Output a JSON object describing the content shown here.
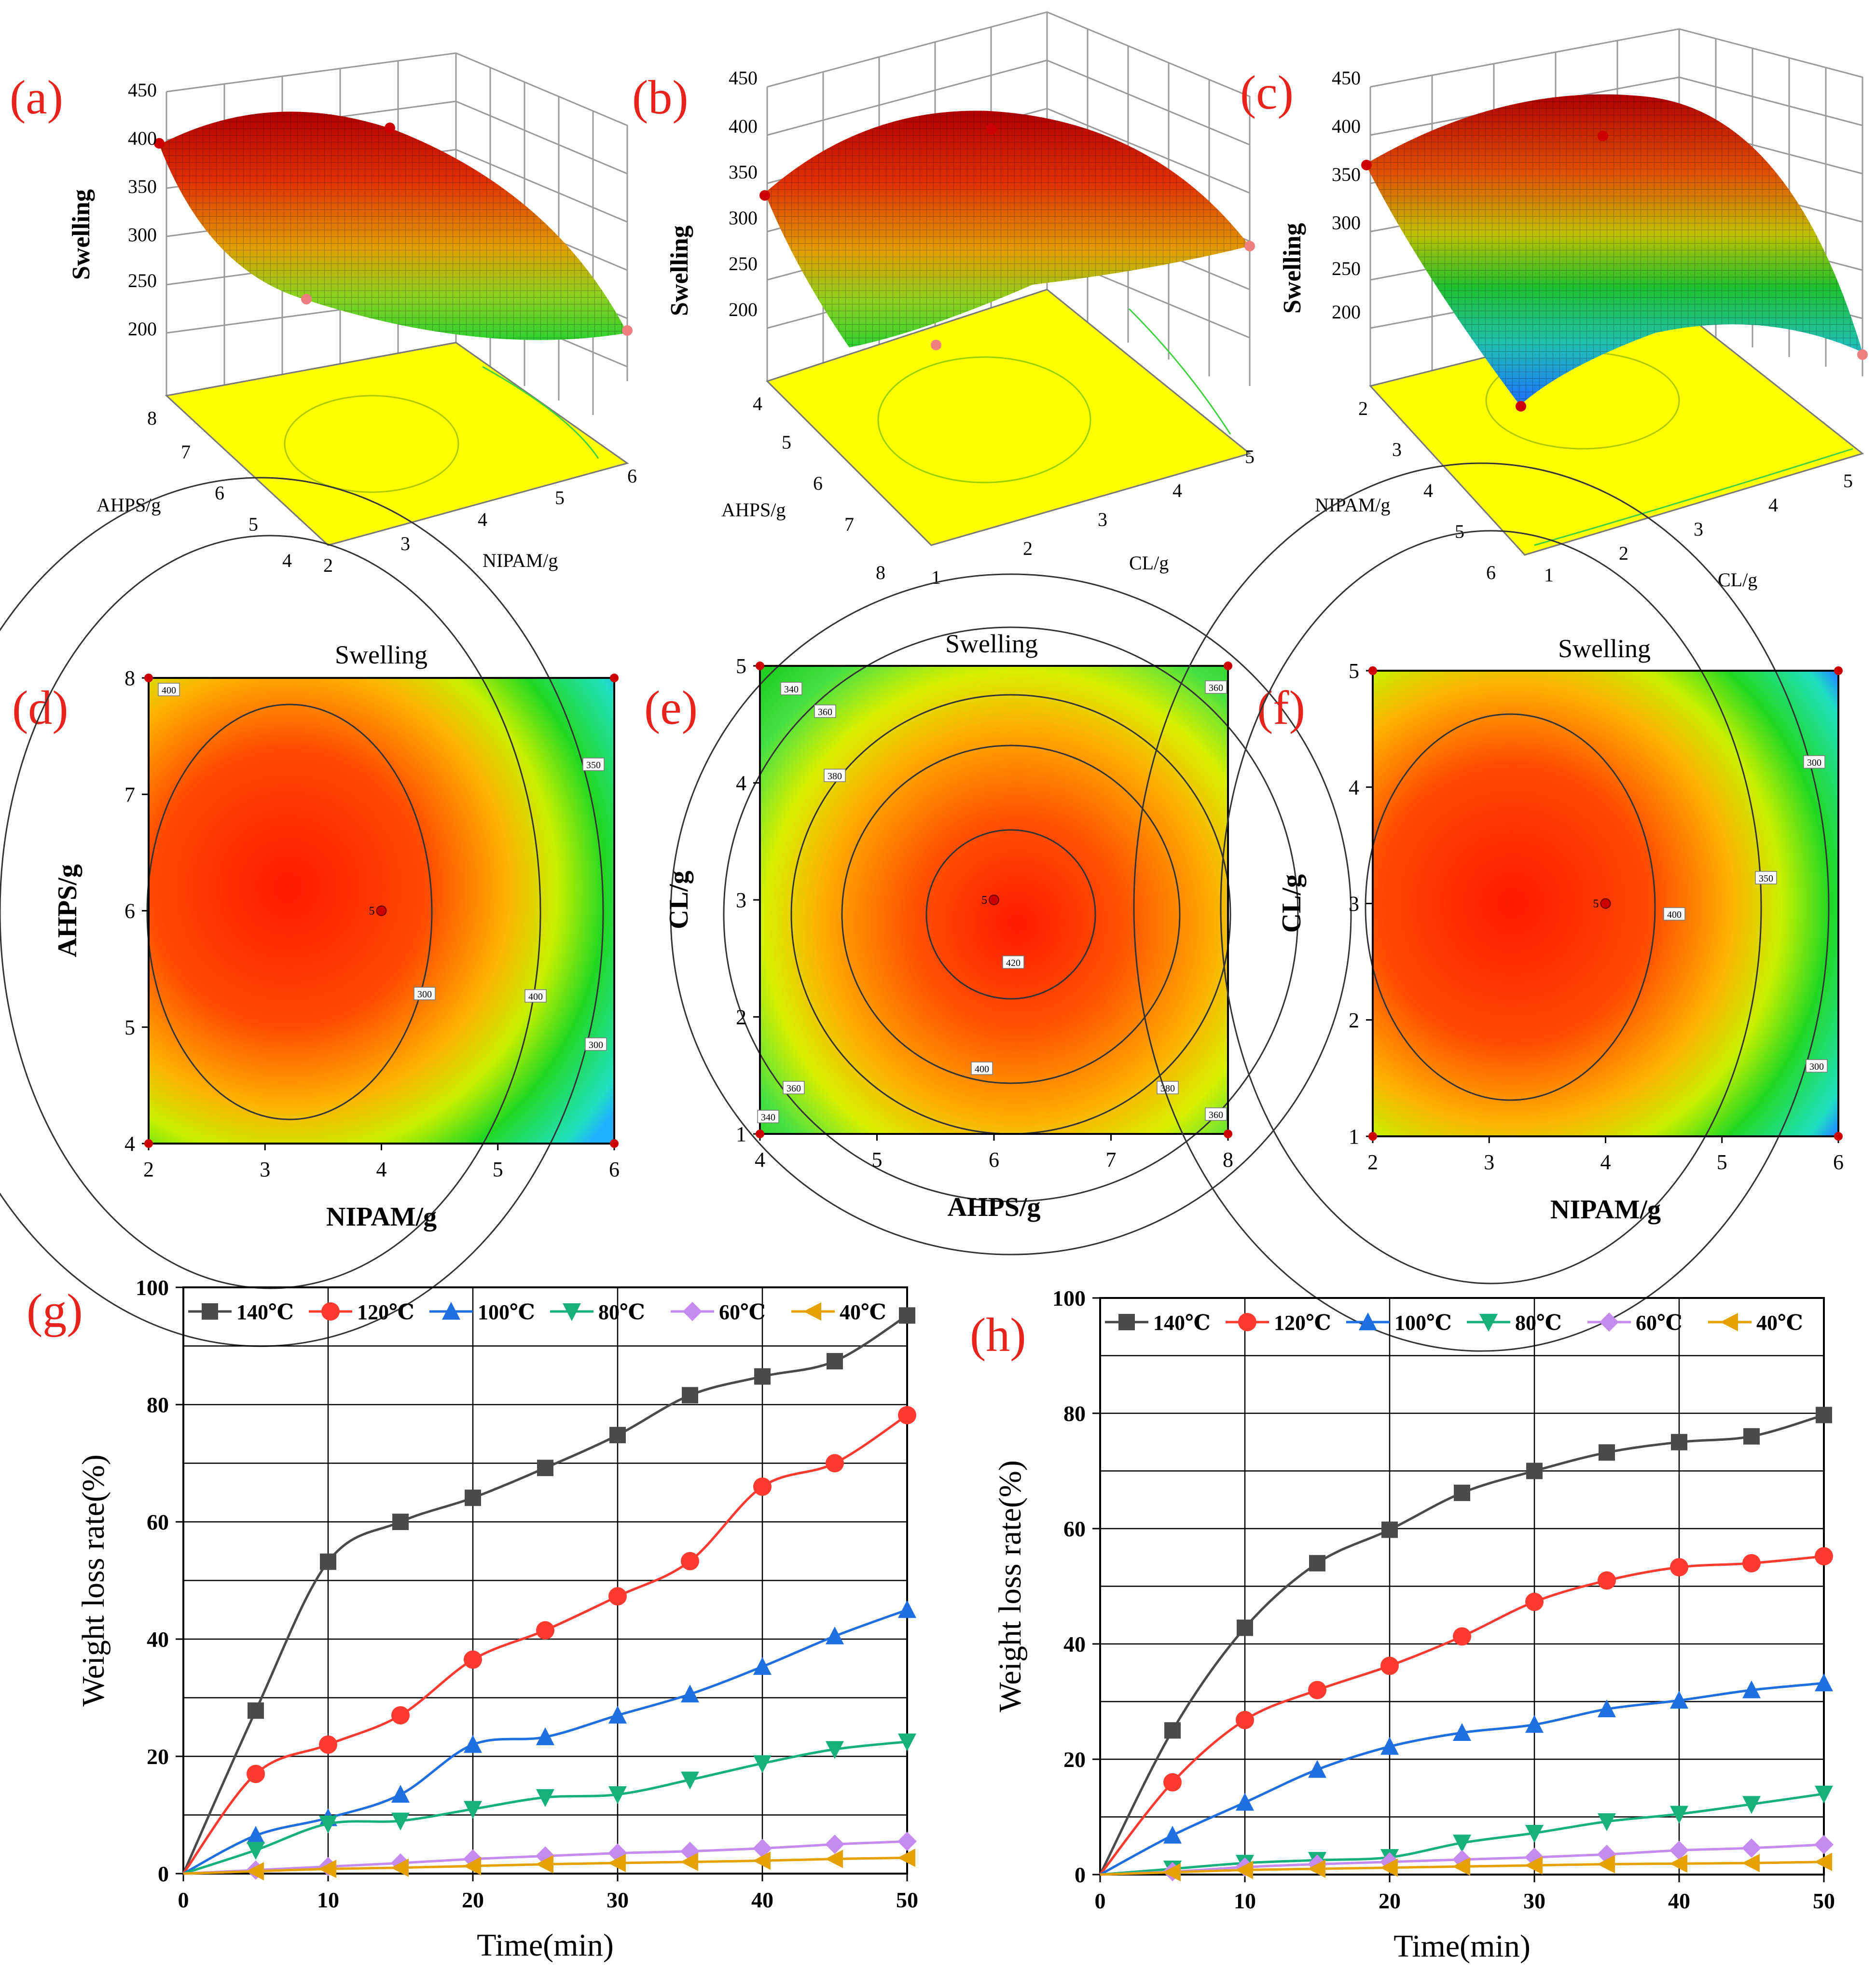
{
  "colors": {
    "panel_label": "#e8231c",
    "s140": "#4a4a4a",
    "s120": "#ff3b30",
    "s100": "#1f6fe0",
    "s80": "#16b07a",
    "s60": "#c58bf0",
    "s40": "#e5a100",
    "surface_high": "#e01010",
    "surface_mid": "#30d030",
    "surface_low": "#1e90ff",
    "contour_base": "#ffff00",
    "point": "#cc0000"
  },
  "chart_data": [
    {
      "id": "a",
      "label": "(a)",
      "type": "surface3d",
      "zlabel": "Swelling",
      "zticks": [
        "450",
        "400",
        "350",
        "300",
        "250",
        "200"
      ],
      "ylabel": "AHPS/g",
      "yticks": [
        "8",
        "7",
        "6",
        "5",
        "4"
      ],
      "xlabel": "NIPAM/g",
      "xticks": [
        "2",
        "3",
        "4",
        "5",
        "6"
      ],
      "zrange": [
        200,
        450
      ]
    },
    {
      "id": "b",
      "label": "(b)",
      "type": "surface3d",
      "zlabel": "Swelling",
      "zticks": [
        "450",
        "400",
        "350",
        "300",
        "250",
        "200"
      ],
      "ylabel": "AHPS/g",
      "yticks": [
        "4",
        "5",
        "6",
        "7",
        "8"
      ],
      "xlabel": "CL/g",
      "xticks": [
        "1",
        "2",
        "3",
        "4",
        "5"
      ],
      "zrange": [
        200,
        450
      ]
    },
    {
      "id": "c",
      "label": "(c)",
      "type": "surface3d",
      "zlabel": "Swelling",
      "zticks": [
        "450",
        "400",
        "350",
        "300",
        "250",
        "200"
      ],
      "ylabel": "NIPAM/g",
      "yticks": [
        "2",
        "3",
        "4",
        "5",
        "6"
      ],
      "xlabel": "CL/g",
      "xticks": [
        "1",
        "2",
        "3",
        "4",
        "5"
      ],
      "zrange": [
        200,
        450
      ]
    },
    {
      "id": "d",
      "label": "(d)",
      "type": "heatmap",
      "title": "Swelling",
      "xlabel": "NIPAM/g",
      "ylabel": "AHPS/g",
      "xlim": [
        2,
        6
      ],
      "ylim": [
        4,
        8
      ],
      "xticks": [
        "2",
        "3",
        "4",
        "5",
        "6"
      ],
      "yticks": [
        "4",
        "5",
        "6",
        "7",
        "8"
      ],
      "center_point": {
        "x": 4,
        "y": 6,
        "label": "5"
      },
      "contour_labels": [
        "400",
        "400",
        "350",
        "300",
        "300"
      ]
    },
    {
      "id": "e",
      "label": "(e)",
      "type": "heatmap",
      "title": "Swelling",
      "xlabel": "AHPS/g",
      "ylabel": "CL/g",
      "xlim": [
        4,
        8
      ],
      "ylim": [
        1,
        5
      ],
      "xticks": [
        "4",
        "5",
        "6",
        "7",
        "8"
      ],
      "yticks": [
        "1",
        "2",
        "3",
        "4",
        "5"
      ],
      "center_point": {
        "x": 6,
        "y": 3,
        "label": "5"
      },
      "contour_labels": [
        "340",
        "360",
        "380",
        "360",
        "420",
        "400",
        "360",
        "380",
        "340",
        "360"
      ]
    },
    {
      "id": "f",
      "label": "(f)",
      "type": "heatmap",
      "title": "Swelling",
      "xlabel": "NIPAM/g",
      "ylabel": "CL/g",
      "xlim": [
        2,
        6
      ],
      "ylim": [
        1,
        5
      ],
      "xticks": [
        "2",
        "3",
        "4",
        "5",
        "6"
      ],
      "yticks": [
        "1",
        "2",
        "3",
        "4",
        "5"
      ],
      "center_point": {
        "x": 4,
        "y": 3,
        "label": "5"
      },
      "contour_labels": [
        "300",
        "400",
        "350",
        "300"
      ]
    },
    {
      "id": "g",
      "label": "(g)",
      "type": "line",
      "xlabel": "Time(min)",
      "ylabel": "Weight loss rate(%)",
      "xlim": [
        0,
        50
      ],
      "ylim": [
        0,
        100
      ],
      "xticks": [
        "0",
        "10",
        "20",
        "30",
        "40",
        "50"
      ],
      "yticks": [
        "0",
        "20",
        "40",
        "60",
        "80",
        "100"
      ],
      "x": [
        0,
        5,
        10,
        15,
        20,
        25,
        30,
        35,
        40,
        45,
        50
      ],
      "legend_position": "top",
      "series": [
        {
          "name": "140℃",
          "marker": "square",
          "color_key": "s140",
          "values": [
            0,
            27.8,
            53.2,
            60,
            64.1,
            69.2,
            74.8,
            81.6,
            84.8,
            87.4,
            95.2
          ]
        },
        {
          "name": "120℃",
          "marker": "circle",
          "color_key": "s120",
          "values": [
            0,
            17,
            22,
            27,
            36.5,
            41.5,
            47.3,
            53.3,
            66,
            70,
            78.2
          ]
        },
        {
          "name": "100℃",
          "marker": "triangle-up",
          "color_key": "s100",
          "values": [
            0,
            6.5,
            9.5,
            13.5,
            22,
            23.3,
            27,
            30.6,
            35.3,
            40.5,
            45
          ]
        },
        {
          "name": "80℃",
          "marker": "triangle-down",
          "color_key": "s80",
          "values": [
            0,
            4,
            8.5,
            9,
            11,
            13,
            13.5,
            16,
            18.8,
            21.2,
            22.5
          ]
        },
        {
          "name": "60℃",
          "marker": "diamond",
          "color_key": "s60",
          "values": [
            0,
            0.6,
            1.2,
            1.8,
            2.5,
            3,
            3.5,
            3.8,
            4.3,
            5,
            5.5
          ]
        },
        {
          "name": "40℃",
          "marker": "triangle-left",
          "color_key": "s40",
          "values": [
            0,
            0.4,
            0.8,
            1,
            1.3,
            1.6,
            1.8,
            2,
            2.2,
            2.5,
            2.7
          ]
        }
      ]
    },
    {
      "id": "h",
      "label": "(h)",
      "type": "line",
      "xlabel": "Time(min)",
      "ylabel": "Weight loss rate(%)",
      "xlim": [
        0,
        50
      ],
      "ylim": [
        0,
        100
      ],
      "xticks": [
        "0",
        "10",
        "20",
        "30",
        "40",
        "50"
      ],
      "yticks": [
        "0",
        "20",
        "40",
        "60",
        "80",
        "100"
      ],
      "x": [
        0,
        5,
        10,
        15,
        20,
        25,
        30,
        35,
        40,
        45,
        50
      ],
      "legend_position": "top",
      "series": [
        {
          "name": "140℃",
          "marker": "square",
          "color_key": "s140",
          "values": [
            0,
            25,
            42.8,
            54,
            59.8,
            66.2,
            70,
            73.2,
            75,
            76,
            79.7
          ]
        },
        {
          "name": "120℃",
          "marker": "circle",
          "color_key": "s120",
          "values": [
            0,
            16,
            26.8,
            32,
            36.2,
            41.3,
            47.3,
            51,
            53.3,
            54,
            55.2
          ]
        },
        {
          "name": "100℃",
          "marker": "triangle-up",
          "color_key": "s100",
          "values": [
            0,
            6.8,
            12.5,
            18.2,
            22.2,
            24.6,
            26,
            28.7,
            30.2,
            32,
            33.2
          ]
        },
        {
          "name": "80℃",
          "marker": "triangle-down",
          "color_key": "s80",
          "values": [
            0,
            1,
            2,
            2.5,
            3,
            5.5,
            7.2,
            9.2,
            10.5,
            12.2,
            14
          ]
        },
        {
          "name": "60℃",
          "marker": "diamond",
          "color_key": "s60",
          "values": [
            0,
            0.5,
            1.3,
            1.8,
            2.2,
            2.6,
            3,
            3.5,
            4.2,
            4.6,
            5.2
          ]
        },
        {
          "name": "40℃",
          "marker": "triangle-left",
          "color_key": "s40",
          "values": [
            0,
            0.4,
            0.8,
            1,
            1.2,
            1.4,
            1.6,
            1.8,
            1.9,
            2,
            2.2
          ]
        }
      ]
    }
  ]
}
